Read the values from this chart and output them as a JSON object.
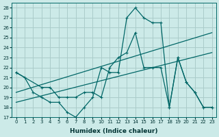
{
  "xlabel": "Humidex (Indice chaleur)",
  "xlim": [
    -0.5,
    23.5
  ],
  "ylim": [
    17,
    28.5
  ],
  "yticks": [
    17,
    18,
    19,
    20,
    21,
    22,
    23,
    24,
    25,
    26,
    27,
    28
  ],
  "xticks": [
    0,
    1,
    2,
    3,
    4,
    5,
    6,
    7,
    8,
    9,
    10,
    11,
    12,
    13,
    14,
    15,
    16,
    17,
    18,
    19,
    20,
    21,
    22,
    23
  ],
  "bg_color": "#cceae8",
  "grid_color": "#aaccca",
  "line_color": "#006666",
  "line1_x": [
    0,
    1,
    2,
    3,
    4,
    5,
    6,
    7,
    8,
    9,
    10,
    11,
    12,
    13,
    14,
    15,
    16,
    17,
    18,
    19,
    20,
    21,
    22,
    23
  ],
  "line1_y": [
    21.5,
    21.0,
    19.5,
    19.0,
    18.5,
    18.5,
    17.5,
    17.0,
    18.0,
    19.0,
    22.0,
    21.5,
    21.5,
    27.0,
    28.0,
    27.0,
    26.5,
    26.5,
    18.0,
    23.0,
    20.5,
    19.5,
    18.0,
    18.0
  ],
  "line2_x": [
    0,
    3,
    4,
    5,
    6,
    7,
    8,
    9,
    10,
    11,
    12,
    13,
    14,
    15,
    16,
    17,
    18,
    19,
    20,
    21,
    22,
    23
  ],
  "line2_y": [
    21.5,
    20.0,
    20.0,
    19.0,
    19.0,
    19.0,
    19.5,
    19.5,
    19.0,
    22.0,
    23.0,
    23.5,
    25.5,
    22.0,
    22.0,
    22.0,
    18.0,
    23.0,
    20.5,
    19.5,
    18.0,
    18.0
  ],
  "line3_x": [
    0,
    23
  ],
  "line3_y": [
    19.5,
    25.5
  ],
  "line4_x": [
    0,
    23
  ],
  "line4_y": [
    18.5,
    23.5
  ]
}
